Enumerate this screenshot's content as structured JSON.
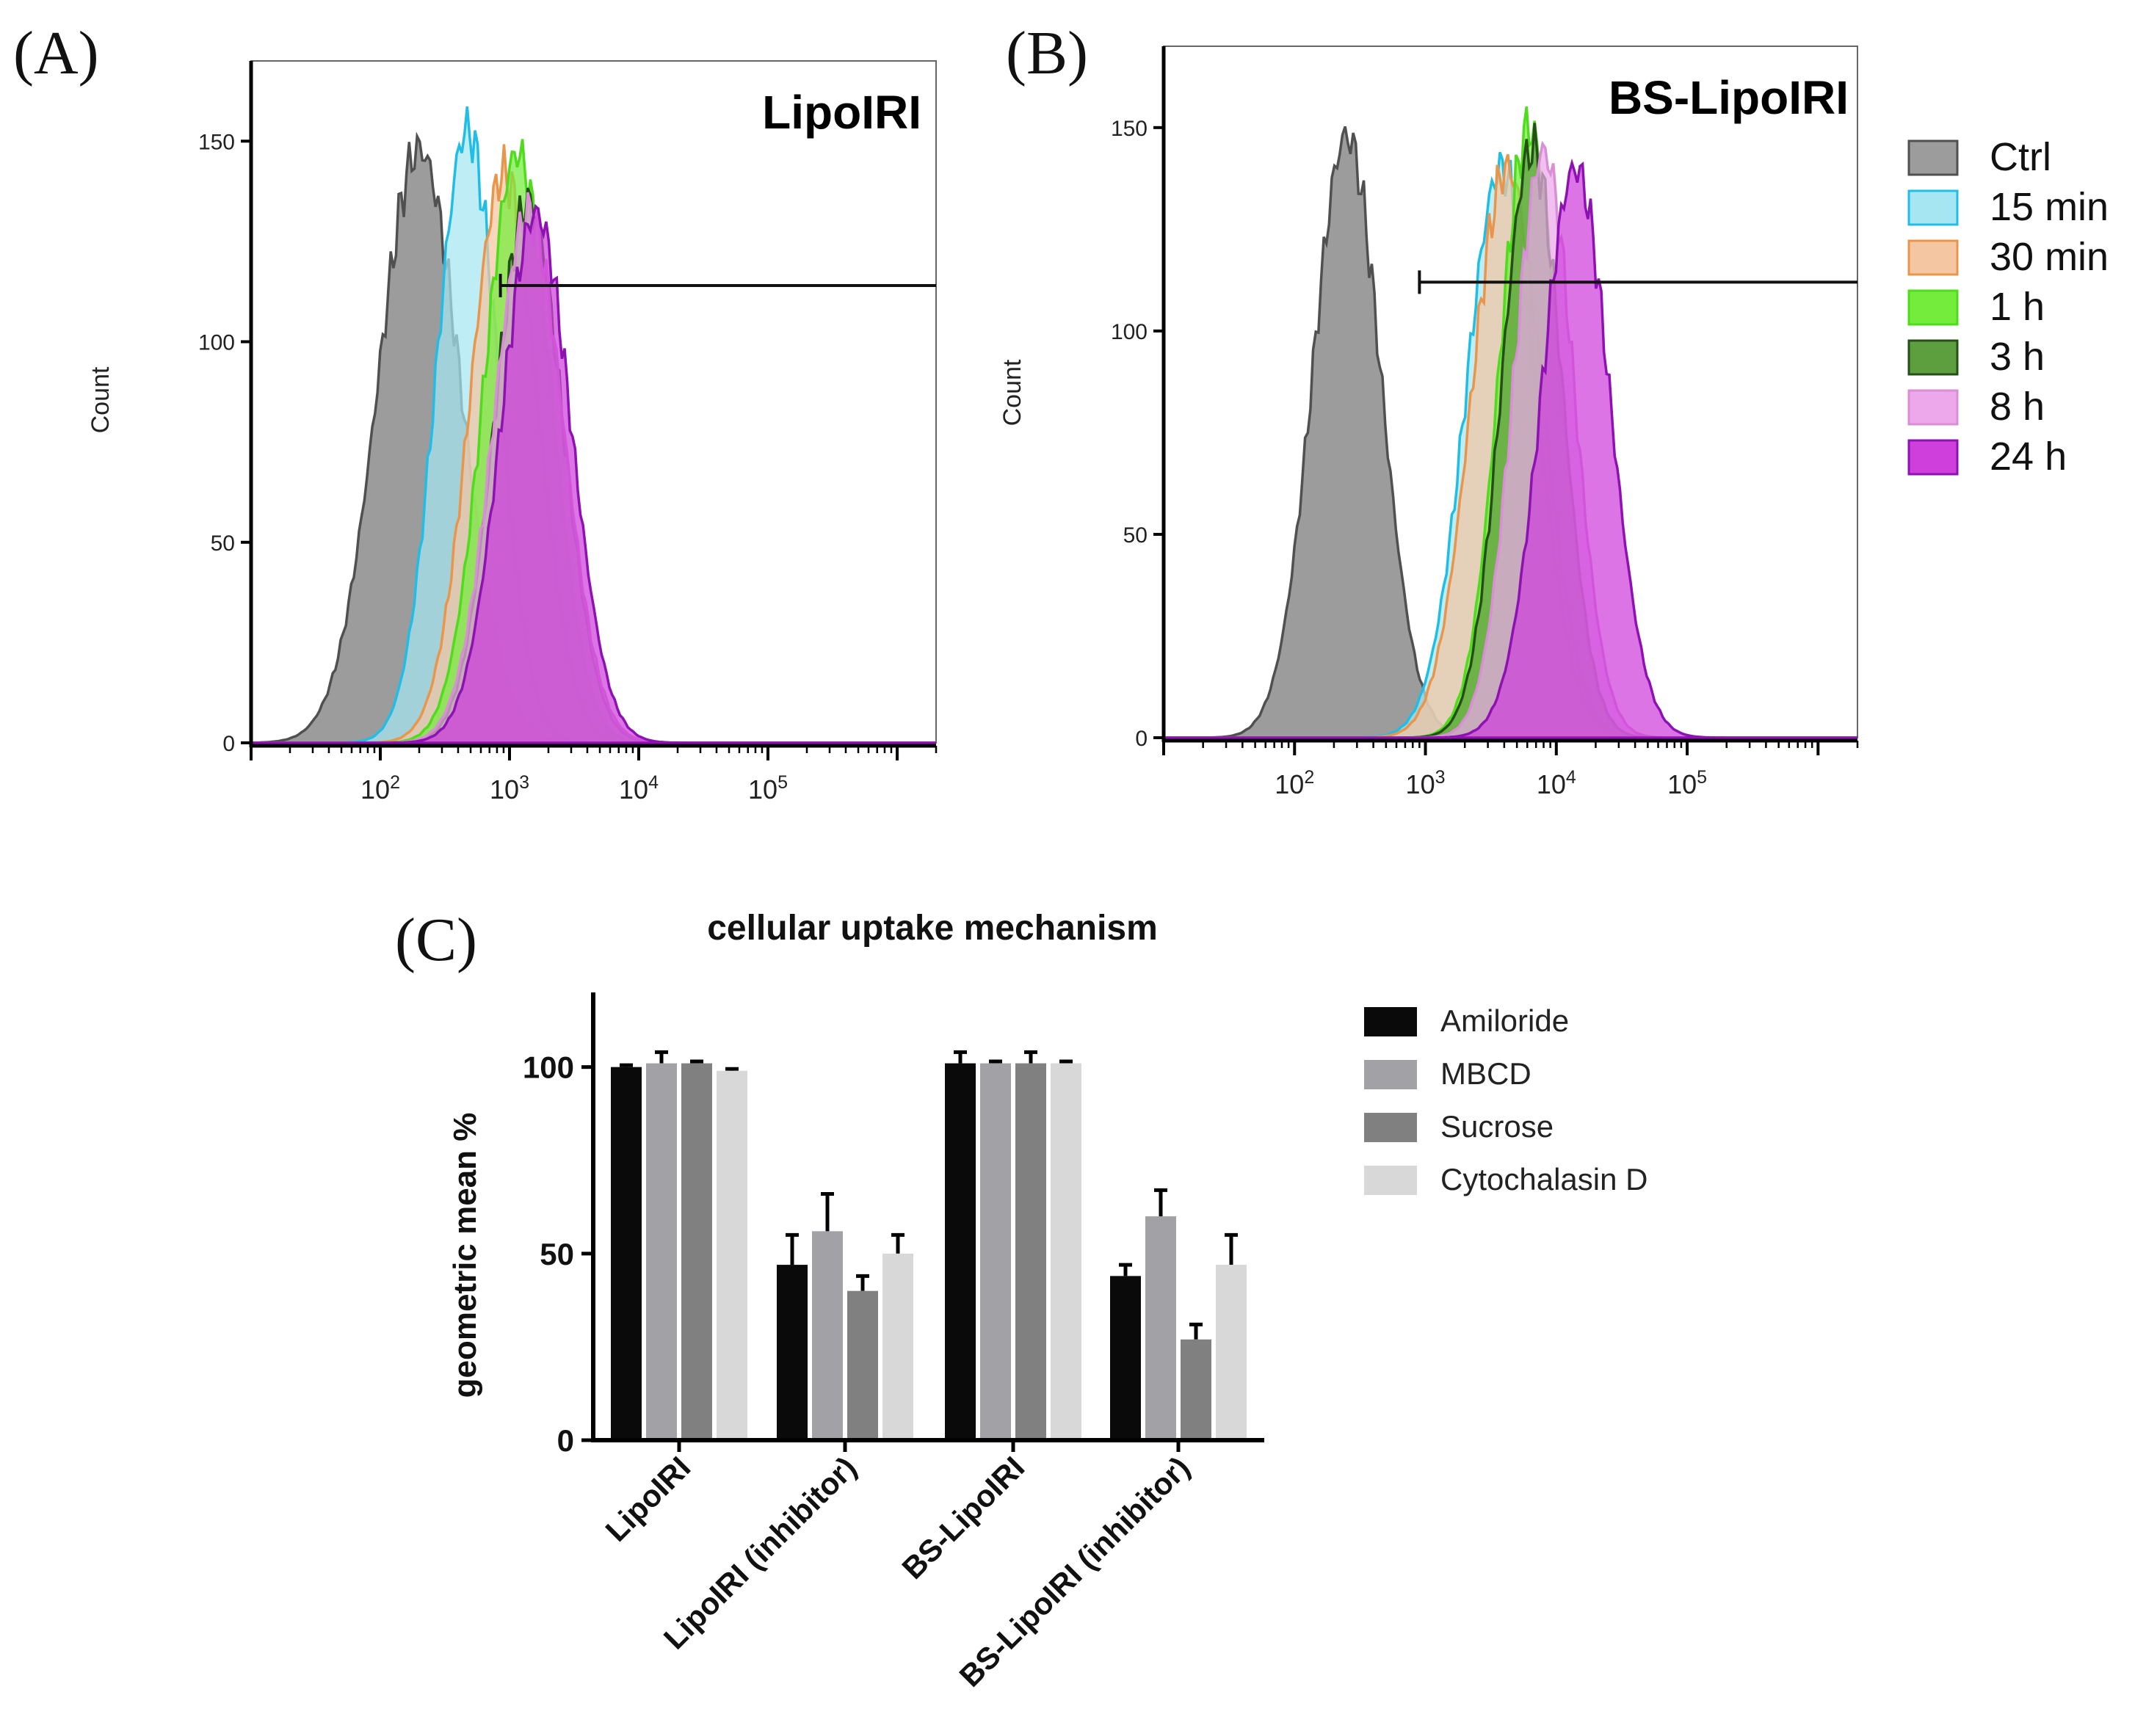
{
  "colors": {
    "Ctrl": "#9c9c9c",
    "15 min": "#a6e6f2",
    "30 min": "#f4c6a2",
    "1 h": "#74ec3c",
    "3 h": "#5d9e3f",
    "8 h": "#eca8ea",
    "24 h": "#cf3fdc",
    "Ctrl_line": "#505050",
    "15 min_line": "#20bde6",
    "30 min_line": "#e8964c",
    "1 h_line": "#4fdc1c",
    "3 h_line": "#254f18",
    "8 h_line": "#d98ed6",
    "24 h_line": "#8e12b2",
    "Amiloride": "#0a0a0a",
    "MBCD": "#a2a2a6",
    "Sucrose": "#808080",
    "Cytochalasin D": "#d8d8d8"
  },
  "legend_histograms": [
    "Ctrl",
    "15 min",
    "30 min",
    "1 h",
    "3 h",
    "8 h",
    "24 h"
  ],
  "chart_data": [
    {
      "panel": "(A)",
      "type": "area",
      "title": "LipoIRI",
      "xlabel": "",
      "ylabel": "Count",
      "xscale": "log",
      "xlim": [
        10,
        2000000
      ],
      "ylim": [
        0,
        170
      ],
      "yticks": [
        0,
        50,
        100,
        150
      ],
      "xtick_labels": [
        {
          "v": 100,
          "base": "10",
          "exp": "2"
        },
        {
          "v": 1000,
          "base": "10",
          "exp": "3"
        },
        {
          "v": 10000,
          "base": "10",
          "exp": "4"
        },
        {
          "v": 100000,
          "base": "10",
          "exp": "5"
        }
      ],
      "gate": {
        "x_start": 850,
        "y": 114
      },
      "series": [
        {
          "name": "Ctrl",
          "peak_x": 200,
          "width": 0.32,
          "height": 148
        },
        {
          "name": "15 min",
          "peak_x": 470,
          "width": 0.24,
          "height": 153
        },
        {
          "name": "30 min",
          "peak_x": 900,
          "width": 0.26,
          "height": 142
        },
        {
          "name": "1 h",
          "peak_x": 1150,
          "width": 0.26,
          "height": 147
        },
        {
          "name": "3 h",
          "peak_x": 1400,
          "width": 0.26,
          "height": 135
        },
        {
          "name": "8 h",
          "peak_x": 1400,
          "width": 0.27,
          "height": 132
        },
        {
          "name": "24 h",
          "peak_x": 1600,
          "width": 0.27,
          "height": 132
        }
      ]
    },
    {
      "panel": "(B)",
      "type": "area",
      "title": "BS-LipoIRI",
      "xlabel": "",
      "ylabel": "Count",
      "xscale": "log",
      "xlim": [
        10,
        2000000
      ],
      "ylim": [
        0,
        170
      ],
      "yticks": [
        0,
        50,
        100,
        150
      ],
      "xtick_labels": [
        {
          "v": 100,
          "base": "10",
          "exp": "2"
        },
        {
          "v": 1000,
          "base": "10",
          "exp": "3"
        },
        {
          "v": 10000,
          "base": "10",
          "exp": "4"
        },
        {
          "v": 100000,
          "base": "10",
          "exp": "5"
        }
      ],
      "gate": {
        "x_start": 900,
        "y": 112
      },
      "series": [
        {
          "name": "Ctrl",
          "peak_x": 250,
          "width": 0.26,
          "height": 148
        },
        {
          "name": "15 min",
          "peak_x": 3800,
          "width": 0.27,
          "height": 140
        },
        {
          "name": "30 min",
          "peak_x": 4200,
          "width": 0.27,
          "height": 140
        },
        {
          "name": "1 h",
          "peak_x": 6200,
          "width": 0.23,
          "height": 150
        },
        {
          "name": "3 h",
          "peak_x": 6500,
          "width": 0.23,
          "height": 145
        },
        {
          "name": "8 h",
          "peak_x": 8000,
          "width": 0.23,
          "height": 144
        },
        {
          "name": "24 h",
          "peak_x": 14000,
          "width": 0.26,
          "height": 140
        }
      ]
    },
    {
      "panel": "(C)",
      "type": "bar",
      "title": "cellular uptake mechanism",
      "xlabel": "",
      "ylabel": "geometric mean %",
      "ylim": [
        0,
        120
      ],
      "yticks": [
        0,
        50,
        100
      ],
      "categories": [
        "LipoIRI",
        "LipoIRI (inhibitor)",
        "BS-LipoIRI",
        "BS-LipoIRI (inhibitor)"
      ],
      "series": [
        {
          "name": "Amiloride",
          "values": [
            100,
            47,
            101,
            44
          ],
          "errors": [
            0.5,
            8,
            3,
            3
          ]
        },
        {
          "name": "MBCD",
          "values": [
            101,
            56,
            101,
            60
          ],
          "errors": [
            3,
            10,
            0.5,
            7
          ]
        },
        {
          "name": "Sucrose",
          "values": [
            101,
            40,
            101,
            27
          ],
          "errors": [
            0.5,
            4,
            3,
            4
          ]
        },
        {
          "name": "Cytochalasin D",
          "values": [
            99,
            50,
            101,
            47
          ],
          "errors": [
            0.5,
            5,
            0.5,
            8
          ]
        }
      ]
    }
  ]
}
